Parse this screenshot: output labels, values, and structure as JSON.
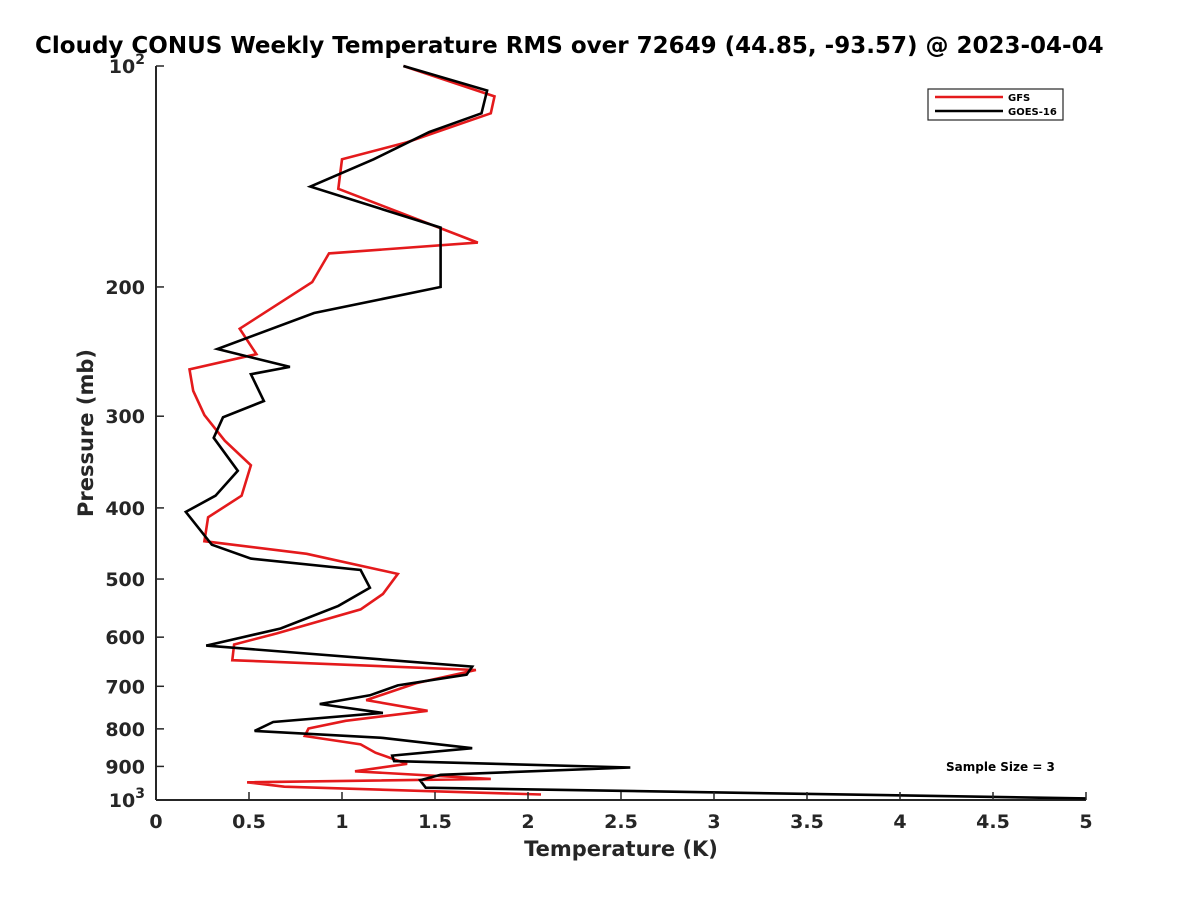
{
  "chart_data": {
    "type": "line",
    "title": "Cloudy CONUS Weekly Temperature RMS over 72649 (44.85, -93.57) @ 2023-04-04",
    "xlabel": "Temperature (K)",
    "ylabel": "Pressure (mb)",
    "xlim": [
      0,
      5
    ],
    "ylim": [
      1000,
      100
    ],
    "yscale": "log",
    "y_reversed": true,
    "x_ticks": [
      "0",
      "0.5",
      "1",
      "1.5",
      "2",
      "2.5",
      "3",
      "3.5",
      "4",
      "4.5",
      "5"
    ],
    "y_ticks": [
      {
        "value": 100,
        "base": "10",
        "exp": "2"
      },
      {
        "value": 200,
        "label": "200"
      },
      {
        "value": 300,
        "label": "300"
      },
      {
        "value": 400,
        "label": "400"
      },
      {
        "value": 500,
        "label": "500"
      },
      {
        "value": 600,
        "label": "600"
      },
      {
        "value": 700,
        "label": "700"
      },
      {
        "value": 800,
        "label": "800"
      },
      {
        "value": 900,
        "label": "900"
      },
      {
        "value": 1000,
        "base": "10",
        "exp": "3"
      }
    ],
    "grid": false,
    "legend_position": "top-right",
    "annotation": "Sample Size = 3",
    "series": [
      {
        "name": "GFS",
        "color": "#e41a1c",
        "x": [
          1.33,
          1.82,
          1.8,
          1.35,
          1.0,
          0.98,
          1.73,
          0.93,
          0.84,
          0.45,
          0.54,
          0.18,
          0.2,
          0.26,
          0.37,
          0.51,
          0.46,
          0.28,
          0.26,
          0.81,
          1.3,
          1.22,
          1.1,
          0.65,
          0.42,
          0.41,
          1.72,
          1.4,
          1.13,
          1.46,
          1.02,
          0.82,
          0.8,
          1.1,
          1.18,
          1.35,
          1.07,
          1.8,
          0.49,
          0.69,
          2.07
        ],
        "y": [
          100,
          110,
          116,
          127,
          134,
          147,
          174,
          180,
          197,
          228,
          247,
          259,
          277,
          299,
          324,
          350,
          385,
          412,
          444,
          462,
          492,
          524,
          550,
          593,
          614,
          645,
          665,
          693,
          731,
          756,
          780,
          799,
          818,
          840,
          862,
          893,
          914,
          936,
          946,
          959,
          983
        ]
      },
      {
        "name": "GOES-16",
        "color": "#000000",
        "x": [
          1.33,
          1.78,
          1.75,
          1.47,
          1.17,
          0.83,
          1.53,
          1.53,
          1.53,
          0.85,
          0.33,
          0.72,
          0.51,
          0.58,
          0.36,
          0.31,
          0.44,
          0.32,
          0.16,
          0.3,
          0.51,
          1.1,
          1.15,
          0.98,
          0.67,
          0.27,
          1.7,
          1.67,
          1.3,
          1.15,
          0.88,
          1.22,
          0.63,
          0.53,
          1.22,
          1.7,
          1.27,
          1.28,
          2.55,
          1.53,
          1.42,
          1.45,
          5.0
        ],
        "y": [
          100,
          108,
          116,
          123,
          134,
          146,
          166,
          188,
          200,
          217,
          243,
          257,
          263,
          286,
          301,
          321,
          356,
          385,
          405,
          449,
          469,
          486,
          514,
          544,
          584,
          616,
          658,
          675,
          698,
          720,
          740,
          761,
          783,
          805,
          823,
          850,
          870,
          885,
          903,
          924,
          940,
          962,
          995
        ]
      }
    ]
  }
}
